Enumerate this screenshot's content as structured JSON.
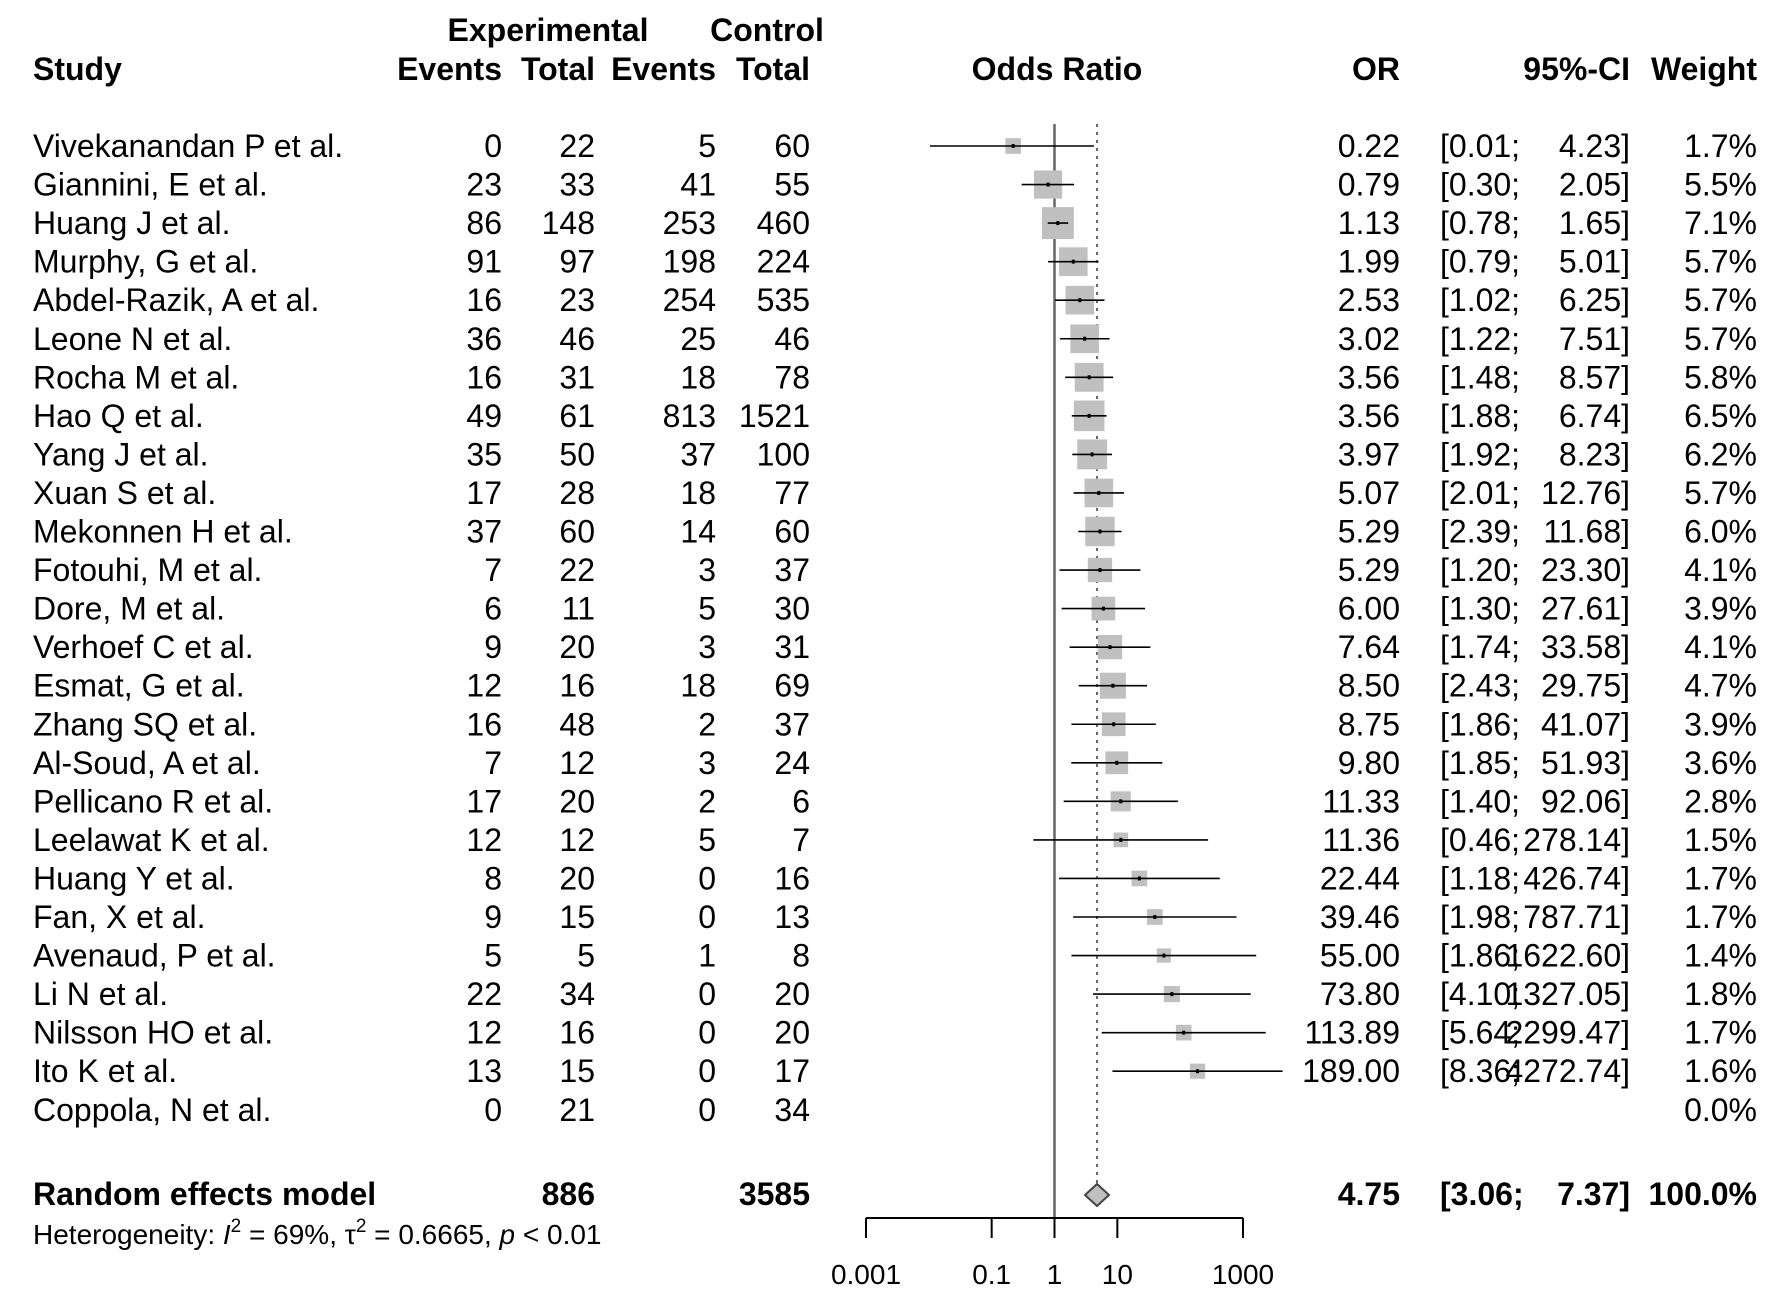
{
  "chart_data": {
    "type": "forest",
    "headers": {
      "experimental": "Experimental",
      "control": "Control",
      "study": "Study",
      "events": "Events",
      "total": "Total",
      "odds_ratio": "Odds Ratio",
      "or": "OR",
      "ci": "95%-CI",
      "weight": "Weight"
    },
    "studies": [
      {
        "name": "Vivekanandan P et al.",
        "exp_events": "0",
        "exp_total": "22",
        "ctrl_events": "5",
        "ctrl_total": "60",
        "or": 0.22,
        "lo": 0.01,
        "hi": 4.23,
        "or_text": "0.22",
        "ci_lo_text": "[0.01;",
        "ci_hi_text": "4.23]",
        "weight_text": "1.7%",
        "weight": 1.7
      },
      {
        "name": "Giannini, E et al.",
        "exp_events": "23",
        "exp_total": "33",
        "ctrl_events": "41",
        "ctrl_total": "55",
        "or": 0.79,
        "lo": 0.3,
        "hi": 2.05,
        "or_text": "0.79",
        "ci_lo_text": "[0.30;",
        "ci_hi_text": "2.05]",
        "weight_text": "5.5%",
        "weight": 5.5
      },
      {
        "name": "Huang J et al.",
        "exp_events": "86",
        "exp_total": "148",
        "ctrl_events": "253",
        "ctrl_total": "460",
        "or": 1.13,
        "lo": 0.78,
        "hi": 1.65,
        "or_text": "1.13",
        "ci_lo_text": "[0.78;",
        "ci_hi_text": "1.65]",
        "weight_text": "7.1%",
        "weight": 7.1
      },
      {
        "name": "Murphy, G et al.",
        "exp_events": "91",
        "exp_total": "97",
        "ctrl_events": "198",
        "ctrl_total": "224",
        "or": 1.99,
        "lo": 0.79,
        "hi": 5.01,
        "or_text": "1.99",
        "ci_lo_text": "[0.79;",
        "ci_hi_text": "5.01]",
        "weight_text": "5.7%",
        "weight": 5.7
      },
      {
        "name": "Abdel-Razik, A et al.",
        "exp_events": "16",
        "exp_total": "23",
        "ctrl_events": "254",
        "ctrl_total": "535",
        "or": 2.53,
        "lo": 1.02,
        "hi": 6.25,
        "or_text": "2.53",
        "ci_lo_text": "[1.02;",
        "ci_hi_text": "6.25]",
        "weight_text": "5.7%",
        "weight": 5.7
      },
      {
        "name": "Leone N et al.",
        "exp_events": "36",
        "exp_total": "46",
        "ctrl_events": "25",
        "ctrl_total": "46",
        "or": 3.02,
        "lo": 1.22,
        "hi": 7.51,
        "or_text": "3.02",
        "ci_lo_text": "[1.22;",
        "ci_hi_text": "7.51]",
        "weight_text": "5.7%",
        "weight": 5.7
      },
      {
        "name": "Rocha M et al.",
        "exp_events": "16",
        "exp_total": "31",
        "ctrl_events": "18",
        "ctrl_total": "78",
        "or": 3.56,
        "lo": 1.48,
        "hi": 8.57,
        "or_text": "3.56",
        "ci_lo_text": "[1.48;",
        "ci_hi_text": "8.57]",
        "weight_text": "5.8%",
        "weight": 5.8
      },
      {
        "name": "Hao Q et al.",
        "exp_events": "49",
        "exp_total": "61",
        "ctrl_events": "813",
        "ctrl_total": "1521",
        "or": 3.56,
        "lo": 1.88,
        "hi": 6.74,
        "or_text": "3.56",
        "ci_lo_text": "[1.88;",
        "ci_hi_text": "6.74]",
        "weight_text": "6.5%",
        "weight": 6.5
      },
      {
        "name": "Yang J et al.",
        "exp_events": "35",
        "exp_total": "50",
        "ctrl_events": "37",
        "ctrl_total": "100",
        "or": 3.97,
        "lo": 1.92,
        "hi": 8.23,
        "or_text": "3.97",
        "ci_lo_text": "[1.92;",
        "ci_hi_text": "8.23]",
        "weight_text": "6.2%",
        "weight": 6.2
      },
      {
        "name": "Xuan S et al.",
        "exp_events": "17",
        "exp_total": "28",
        "ctrl_events": "18",
        "ctrl_total": "77",
        "or": 5.07,
        "lo": 2.01,
        "hi": 12.76,
        "or_text": "5.07",
        "ci_lo_text": "[2.01;",
        "ci_hi_text": "12.76]",
        "weight_text": "5.7%",
        "weight": 5.7
      },
      {
        "name": "Mekonnen H et al.",
        "exp_events": "37",
        "exp_total": "60",
        "ctrl_events": "14",
        "ctrl_total": "60",
        "or": 5.29,
        "lo": 2.39,
        "hi": 11.68,
        "or_text": "5.29",
        "ci_lo_text": "[2.39;",
        "ci_hi_text": "11.68]",
        "weight_text": "6.0%",
        "weight": 6.0
      },
      {
        "name": "Fotouhi, M et al.",
        "exp_events": "7",
        "exp_total": "22",
        "ctrl_events": "3",
        "ctrl_total": "37",
        "or": 5.29,
        "lo": 1.2,
        "hi": 23.3,
        "or_text": "5.29",
        "ci_lo_text": "[1.20;",
        "ci_hi_text": "23.30]",
        "weight_text": "4.1%",
        "weight": 4.1
      },
      {
        "name": "Dore, M et al.",
        "exp_events": "6",
        "exp_total": "11",
        "ctrl_events": "5",
        "ctrl_total": "30",
        "or": 6.0,
        "lo": 1.3,
        "hi": 27.61,
        "or_text": "6.00",
        "ci_lo_text": "[1.30;",
        "ci_hi_text": "27.61]",
        "weight_text": "3.9%",
        "weight": 3.9
      },
      {
        "name": "Verhoef C et al.",
        "exp_events": "9",
        "exp_total": "20",
        "ctrl_events": "3",
        "ctrl_total": "31",
        "or": 7.64,
        "lo": 1.74,
        "hi": 33.58,
        "or_text": "7.64",
        "ci_lo_text": "[1.74;",
        "ci_hi_text": "33.58]",
        "weight_text": "4.1%",
        "weight": 4.1
      },
      {
        "name": "Esmat, G et al.",
        "exp_events": "12",
        "exp_total": "16",
        "ctrl_events": "18",
        "ctrl_total": "69",
        "or": 8.5,
        "lo": 2.43,
        "hi": 29.75,
        "or_text": "8.50",
        "ci_lo_text": "[2.43;",
        "ci_hi_text": "29.75]",
        "weight_text": "4.7%",
        "weight": 4.7
      },
      {
        "name": "Zhang SQ et al.",
        "exp_events": "16",
        "exp_total": "48",
        "ctrl_events": "2",
        "ctrl_total": "37",
        "or": 8.75,
        "lo": 1.86,
        "hi": 41.07,
        "or_text": "8.75",
        "ci_lo_text": "[1.86;",
        "ci_hi_text": "41.07]",
        "weight_text": "3.9%",
        "weight": 3.9
      },
      {
        "name": "Al-Soud, A et al.",
        "exp_events": "7",
        "exp_total": "12",
        "ctrl_events": "3",
        "ctrl_total": "24",
        "or": 9.8,
        "lo": 1.85,
        "hi": 51.93,
        "or_text": "9.80",
        "ci_lo_text": "[1.85;",
        "ci_hi_text": "51.93]",
        "weight_text": "3.6%",
        "weight": 3.6
      },
      {
        "name": "Pellicano R et al.",
        "exp_events": "17",
        "exp_total": "20",
        "ctrl_events": "2",
        "ctrl_total": "6",
        "or": 11.33,
        "lo": 1.4,
        "hi": 92.06,
        "or_text": "11.33",
        "ci_lo_text": "[1.40;",
        "ci_hi_text": "92.06]",
        "weight_text": "2.8%",
        "weight": 2.8
      },
      {
        "name": "Leelawat K et al.",
        "exp_events": "12",
        "exp_total": "12",
        "ctrl_events": "5",
        "ctrl_total": "7",
        "or": 11.36,
        "lo": 0.46,
        "hi": 278.14,
        "or_text": "11.36",
        "ci_lo_text": "[0.46;",
        "ci_hi_text": "278.14]",
        "weight_text": "1.5%",
        "weight": 1.5
      },
      {
        "name": "Huang Y et al.",
        "exp_events": "8",
        "exp_total": "20",
        "ctrl_events": "0",
        "ctrl_total": "16",
        "or": 22.44,
        "lo": 1.18,
        "hi": 426.74,
        "or_text": "22.44",
        "ci_lo_text": "[1.18;",
        "ci_hi_text": "426.74]",
        "weight_text": "1.7%",
        "weight": 1.7
      },
      {
        "name": "Fan, X et al.",
        "exp_events": "9",
        "exp_total": "15",
        "ctrl_events": "0",
        "ctrl_total": "13",
        "or": 39.46,
        "lo": 1.98,
        "hi": 787.71,
        "or_text": "39.46",
        "ci_lo_text": "[1.98;",
        "ci_hi_text": "787.71]",
        "weight_text": "1.7%",
        "weight": 1.7
      },
      {
        "name": "Avenaud, P et al.",
        "exp_events": "5",
        "exp_total": "5",
        "ctrl_events": "1",
        "ctrl_total": "8",
        "or": 55.0,
        "lo": 1.86,
        "hi": 1622.6,
        "or_text": "55.00",
        "ci_lo_text": "[1.86;",
        "ci_hi_text": "1622.60]",
        "weight_text": "1.4%",
        "weight": 1.4
      },
      {
        "name": "Li N et al.",
        "exp_events": "22",
        "exp_total": "34",
        "ctrl_events": "0",
        "ctrl_total": "20",
        "or": 73.8,
        "lo": 4.1,
        "hi": 1327.05,
        "or_text": "73.80",
        "ci_lo_text": "[4.10;",
        "ci_hi_text": "1327.05]",
        "weight_text": "1.8%",
        "weight": 1.8
      },
      {
        "name": "Nilsson HO et al.",
        "exp_events": "12",
        "exp_total": "16",
        "ctrl_events": "0",
        "ctrl_total": "20",
        "or": 113.89,
        "lo": 5.64,
        "hi": 2299.47,
        "or_text": "113.89",
        "ci_lo_text": "[5.64;",
        "ci_hi_text": "2299.47]",
        "weight_text": "1.7%",
        "weight": 1.7
      },
      {
        "name": "Ito K et al.",
        "exp_events": "13",
        "exp_total": "15",
        "ctrl_events": "0",
        "ctrl_total": "17",
        "or": 189.0,
        "lo": 8.36,
        "hi": 4272.74,
        "or_text": "189.00",
        "ci_lo_text": "[8.36;",
        "ci_hi_text": "4272.74]",
        "weight_text": "1.6%",
        "weight": 1.6
      },
      {
        "name": "Coppola, N et al.",
        "exp_events": "0",
        "exp_total": "21",
        "ctrl_events": "0",
        "ctrl_total": "34",
        "or": null,
        "lo": null,
        "hi": null,
        "or_text": "",
        "ci_lo_text": "",
        "ci_hi_text": "",
        "weight_text": "0.0%",
        "weight": 0.0
      }
    ],
    "pooled": {
      "label": "Random effects model",
      "exp_total": "886",
      "ctrl_total": "3585",
      "or": 4.75,
      "lo": 3.06,
      "hi": 7.37,
      "or_text": "4.75",
      "ci_lo_text": "[3.06;",
      "ci_hi_text": "7.37]",
      "weight_text": "100.0%"
    },
    "heterogeneity": {
      "prefix": "Heterogeneity: ",
      "i2_symbol": "I",
      "i2_sup": "2",
      "i2_value": " = 69%, ",
      "tau_symbol": "τ",
      "tau_sup": "2",
      "tau_value": " = 0.6665, ",
      "p_symbol": "p",
      "p_value": " < 0.01"
    },
    "x_axis": {
      "scale": "log",
      "ticks": [
        0.001,
        0.1,
        1,
        10,
        1000
      ],
      "tick_labels": [
        "0.001",
        "0.1",
        "1",
        "10",
        "1000"
      ],
      "range": [
        0.001,
        1000
      ]
    },
    "reference_line": 1,
    "colors": {
      "square": "#c0c0c0",
      "diamond": "#c0c0c0",
      "line": "#000000",
      "ref_line": "#666666"
    }
  }
}
